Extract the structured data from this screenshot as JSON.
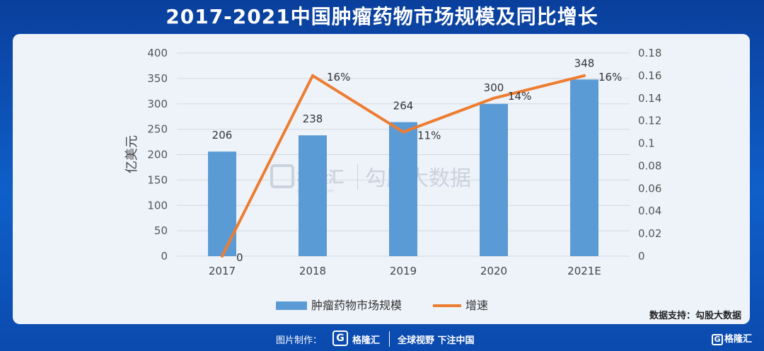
{
  "title": "2017-2021中国肿瘤药物市场规模及同比增长",
  "watermark": {
    "brand": "格隆汇",
    "sub": "gelonghui.com",
    "right": "勾股大数据"
  },
  "source_note": "数据支持：勾股大数据",
  "footer": {
    "made_by": "图片制作：",
    "brand": "格隆汇",
    "slogan": "全球视野 下注中国",
    "corner_brand": "格隆汇"
  },
  "colors": {
    "bar": "#5b9bd5",
    "line": "#ed7d31",
    "axis_text": "#555555"
  },
  "chart_data": {
    "type": "bar",
    "categories": [
      "2017",
      "2018",
      "2019",
      "2020",
      "2021E"
    ],
    "ylabel": "亿美元",
    "ylim": [
      0,
      400
    ],
    "yticks": [
      0,
      50,
      100,
      150,
      200,
      250,
      300,
      350,
      400
    ],
    "y2lim": [
      0,
      0.18
    ],
    "y2ticks": [
      "0",
      "0.02",
      "0.04",
      "0.06",
      "0.08",
      "0.1",
      "0.12",
      "0.14",
      "0.16",
      "0.18"
    ],
    "grid": true,
    "legend_position": "bottom",
    "series": [
      {
        "name": "肿瘤药物市场规模",
        "type": "bar",
        "axis": "left",
        "values": [
          206,
          238,
          264,
          300,
          348
        ],
        "labels": [
          "206",
          "238",
          "264",
          "300",
          "348"
        ]
      },
      {
        "name": "增速",
        "type": "line",
        "axis": "right",
        "values": [
          0,
          0.16,
          0.11,
          0.14,
          0.16
        ],
        "labels": [
          "0",
          "16%",
          "11%",
          "14%",
          "16%"
        ]
      }
    ]
  }
}
